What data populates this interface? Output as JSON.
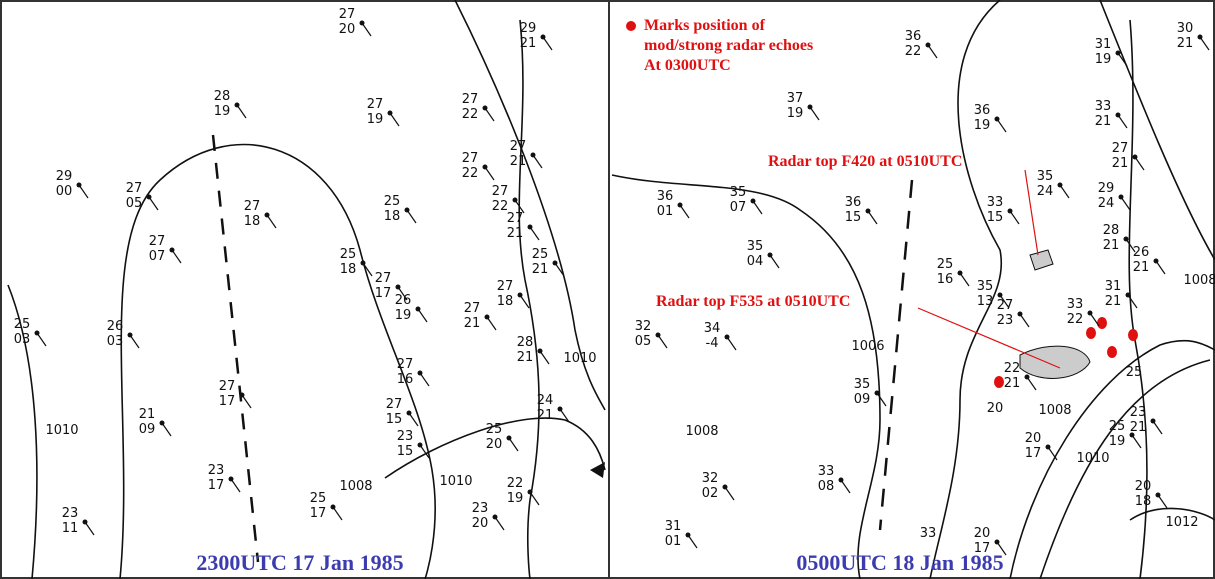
{
  "left_map": {
    "caption": "2300UTC 17 Jan 1985",
    "stations": [
      [
        "27",
        "20"
      ],
      [
        "29",
        "21"
      ],
      [
        "28",
        "19"
      ],
      [
        "27",
        "19"
      ],
      [
        "27",
        "22"
      ],
      [
        "27",
        "21"
      ],
      [
        "27",
        "22"
      ],
      [
        "29",
        "00"
      ],
      [
        "27",
        "05"
      ],
      [
        "27",
        "18"
      ],
      [
        "25",
        "18"
      ],
      [
        "27",
        "22"
      ],
      [
        "27",
        "21"
      ],
      [
        "27",
        "07"
      ],
      [
        "25",
        "21"
      ],
      [
        "25",
        "18"
      ],
      [
        "27",
        "17"
      ],
      [
        "26",
        "19"
      ],
      [
        "27",
        "18"
      ],
      [
        "27",
        "21"
      ],
      [
        "25",
        "03"
      ],
      [
        "26",
        "03"
      ],
      [
        "28",
        "21"
      ],
      [
        "27",
        "16"
      ],
      [
        "27",
        "17"
      ],
      [
        "27",
        "15"
      ],
      [
        "24",
        "21"
      ],
      [
        "21",
        "09"
      ],
      [
        "23",
        "15"
      ],
      [
        "25",
        "20"
      ],
      [
        "23",
        "17"
      ],
      [
        "25",
        "17"
      ],
      [
        "23",
        "20"
      ],
      [
        "22",
        "19"
      ],
      [
        "23",
        "11"
      ]
    ],
    "isobars": [
      "1010",
      "1010",
      "1008",
      "1010"
    ]
  },
  "right_map": {
    "caption": "0500UTC 18 Jan 1985",
    "legend": [
      "Marks position of",
      "mod/strong radar echoes",
      "At 0300UTC"
    ],
    "annotations": [
      "Radar top F420 at 0510UTC",
      "Radar top F535 at 0510UTC"
    ],
    "stations": [
      [
        "36",
        "22"
      ],
      [
        "31",
        "19"
      ],
      [
        "30",
        "21"
      ],
      [
        "37",
        "19"
      ],
      [
        "36",
        "19"
      ],
      [
        "33",
        "21"
      ],
      [
        "27",
        "21"
      ],
      [
        "35",
        "24"
      ],
      [
        "29",
        "24"
      ],
      [
        "36",
        "01"
      ],
      [
        "35",
        "07"
      ],
      [
        "36",
        "15"
      ],
      [
        "33",
        "15"
      ],
      [
        "28",
        "21"
      ],
      [
        "35",
        "04"
      ],
      [
        "26",
        "21"
      ],
      [
        "25",
        "16"
      ],
      [
        "35",
        "13"
      ],
      [
        "31",
        "21"
      ],
      [
        "33",
        "22"
      ],
      [
        "27",
        "23"
      ],
      [
        "32",
        "05"
      ],
      [
        "34",
        "-4"
      ],
      [
        "22",
        "21"
      ],
      [
        "35",
        "09"
      ],
      [
        "23",
        "21"
      ],
      [
        "25",
        "19"
      ],
      [
        "20",
        "17"
      ],
      [
        "32",
        "02"
      ],
      [
        "33",
        "08"
      ],
      [
        "20",
        "18"
      ],
      [
        "20",
        "17"
      ],
      [
        "31",
        "01"
      ]
    ],
    "single_labels": [
      "25",
      "20",
      "33"
    ],
    "isobars": [
      "1008",
      "1006",
      "1008",
      "1008",
      "1010",
      "1012"
    ]
  }
}
